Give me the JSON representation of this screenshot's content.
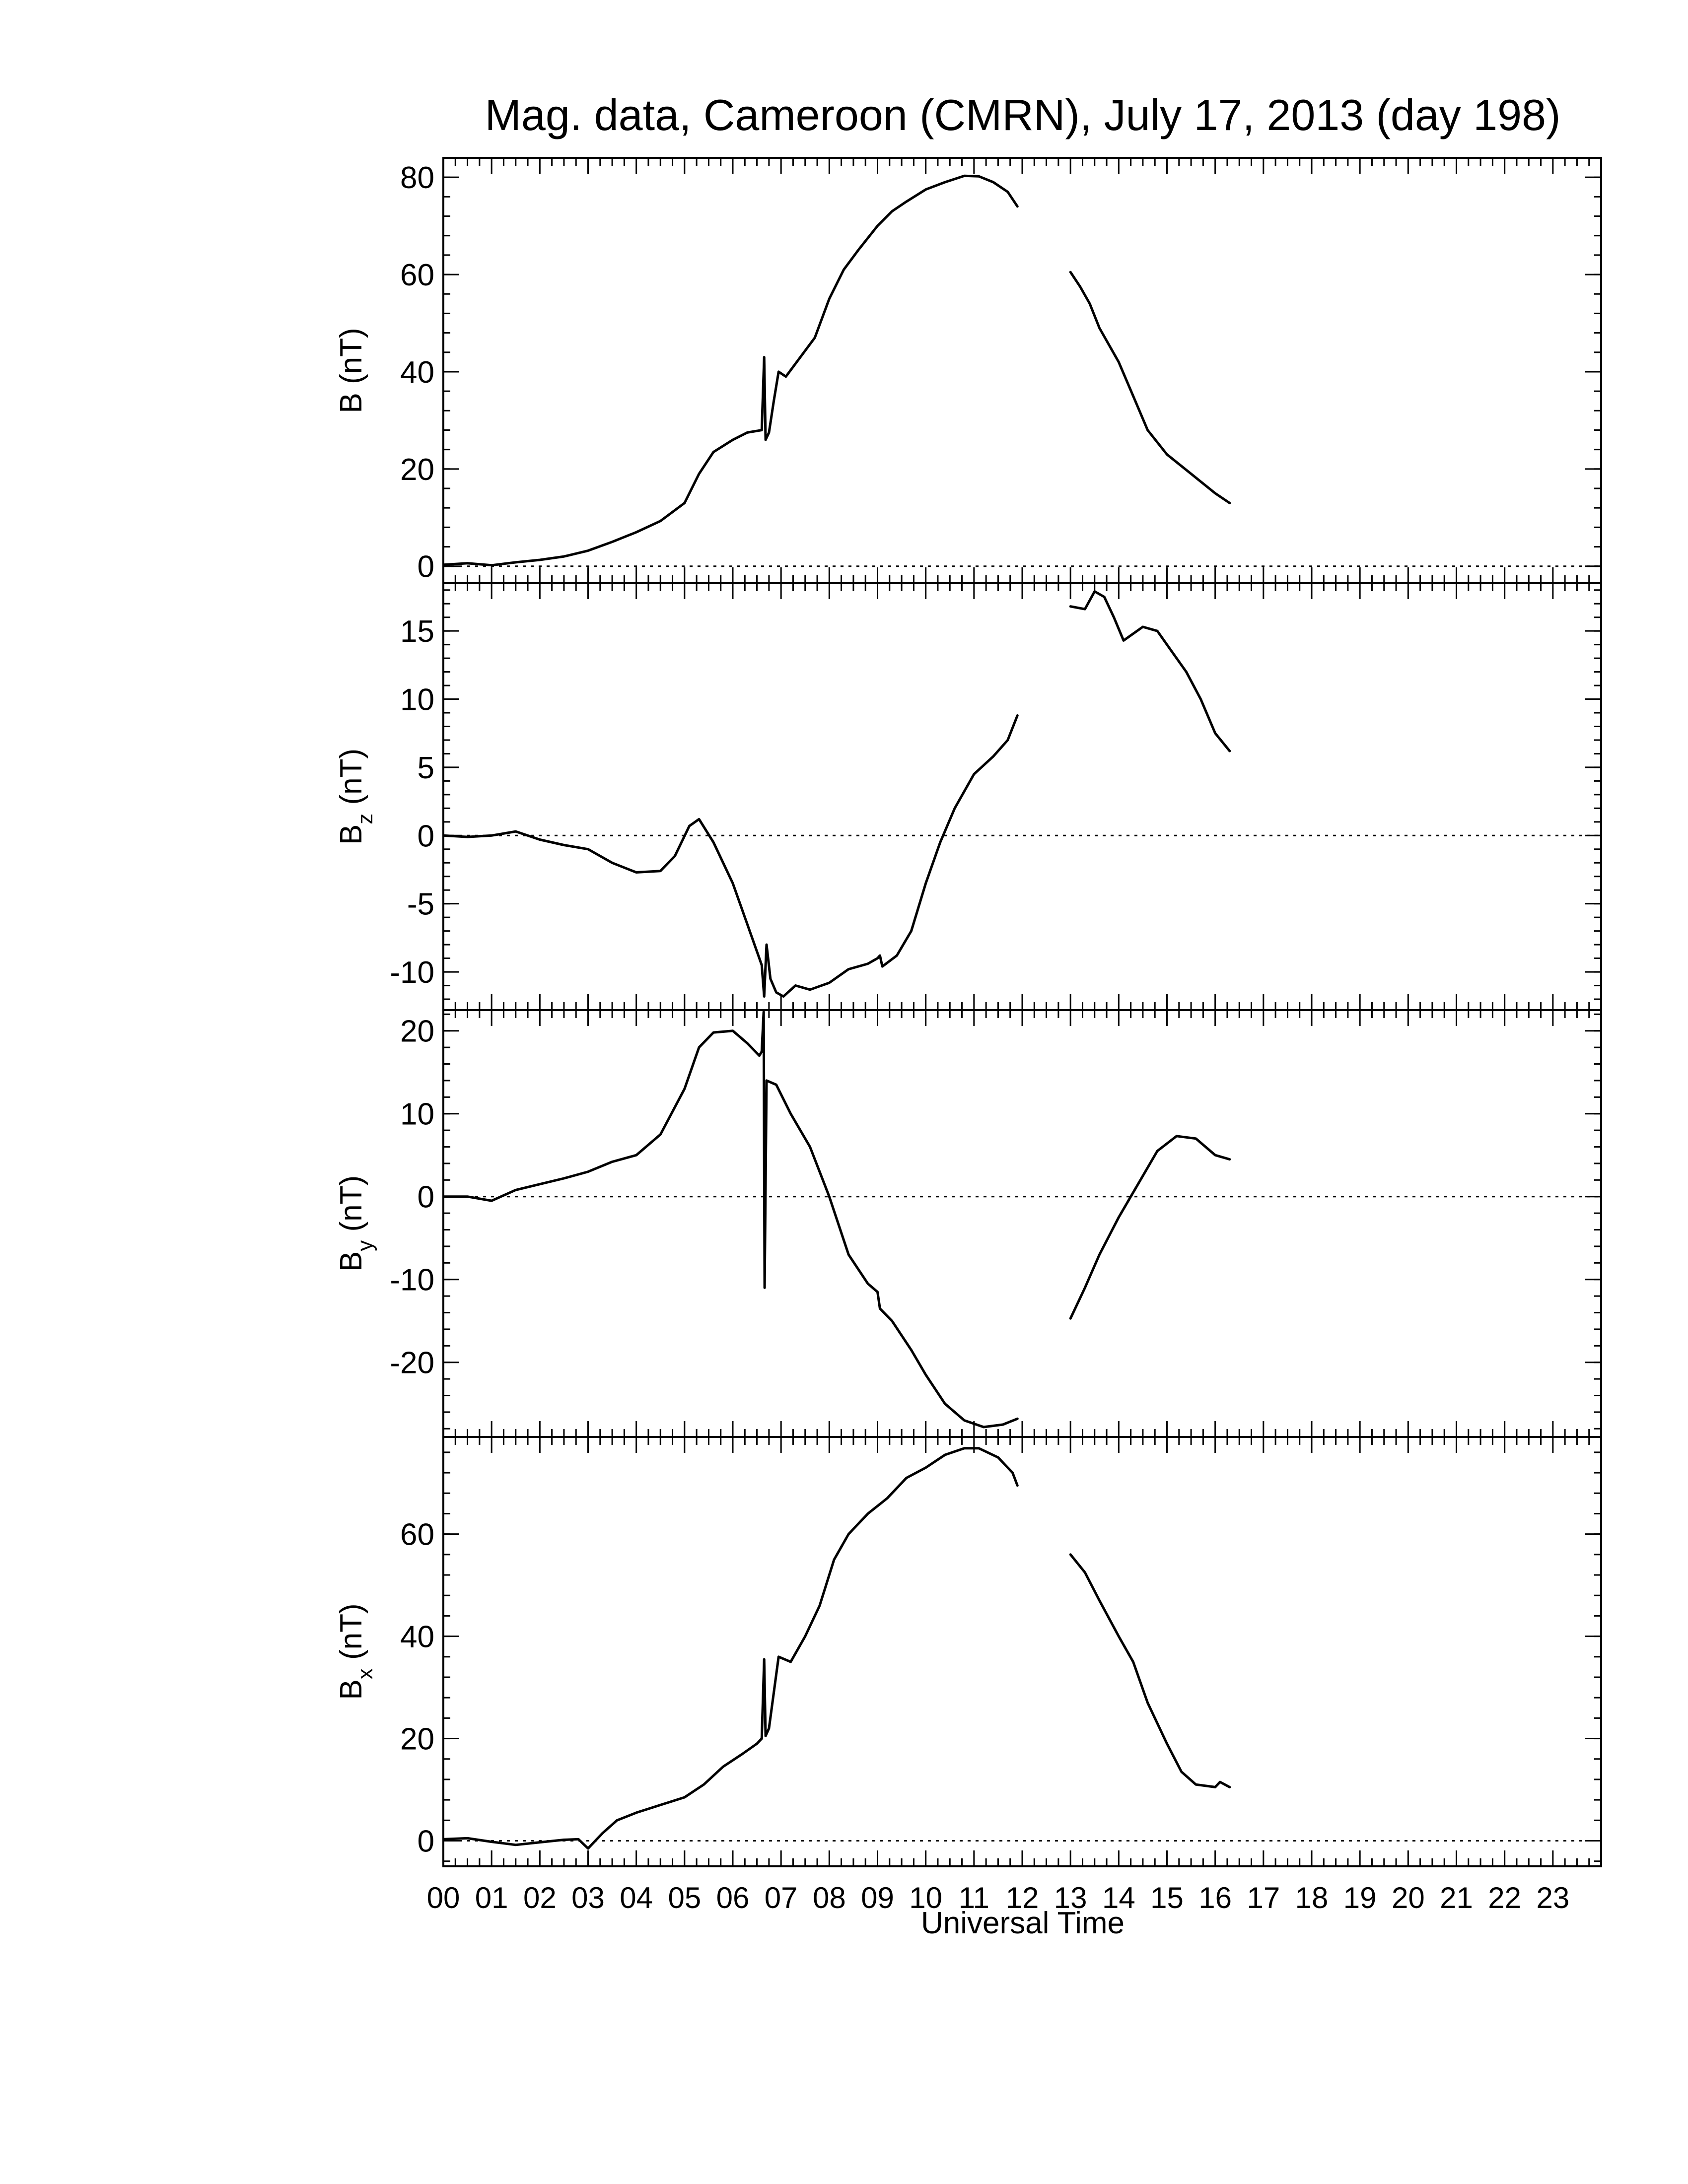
{
  "chart_data": {
    "type": "line",
    "title": "Mag. data, Cameroon (CMRN), July 17, 2013 (day 198)",
    "xlabel": "Universal Time",
    "xlim": [
      0,
      24
    ],
    "xtick_labels": [
      "00",
      "01",
      "02",
      "03",
      "04",
      "05",
      "06",
      "07",
      "08",
      "09",
      "10",
      "11",
      "12",
      "13",
      "14",
      "15",
      "16",
      "17",
      "18",
      "19",
      "20",
      "21",
      "22",
      "23"
    ],
    "grid": false,
    "panels": [
      {
        "id": "B",
        "ylabel_base": "B",
        "ylabel_sub": "",
        "ylabel_unit": " (nT)",
        "ylim": [
          -3.5,
          84
        ],
        "yticks": [
          0,
          20,
          40,
          60,
          80
        ],
        "ytick_labels": [
          "0",
          "20",
          "40",
          "60",
          "80"
        ],
        "zero_line": true,
        "segments": [
          [
            [
              0,
              0.3
            ],
            [
              0.5,
              0.6
            ],
            [
              1,
              0.2
            ],
            [
              1.5,
              0.8
            ],
            [
              2,
              1.3
            ],
            [
              2.5,
              2.0
            ],
            [
              3,
              3.2
            ],
            [
              3.5,
              5.0
            ],
            [
              4,
              7.0
            ],
            [
              4.5,
              9.3
            ],
            [
              5,
              13.0
            ],
            [
              5.3,
              19.0
            ],
            [
              5.6,
              23.5
            ],
            [
              6,
              26.0
            ],
            [
              6.3,
              27.5
            ],
            [
              6.6,
              28.0
            ],
            [
              6.65,
              43.0
            ],
            [
              6.68,
              26.0
            ],
            [
              6.75,
              27.5
            ],
            [
              6.85,
              34.0
            ],
            [
              6.95,
              40.0
            ],
            [
              7.1,
              39.0
            ],
            [
              7.4,
              43.0
            ],
            [
              7.7,
              47.0
            ],
            [
              8,
              55.0
            ],
            [
              8.3,
              61.0
            ],
            [
              8.6,
              65.0
            ],
            [
              9,
              70.0
            ],
            [
              9.3,
              73.0
            ],
            [
              9.6,
              75.0
            ],
            [
              10,
              77.5
            ],
            [
              10.4,
              79.0
            ],
            [
              10.8,
              80.3
            ],
            [
              11.1,
              80.2
            ],
            [
              11.4,
              79.0
            ],
            [
              11.7,
              77.0
            ],
            [
              11.9,
              74.0
            ]
          ],
          [
            [
              13,
              60.5
            ],
            [
              13.2,
              57.5
            ],
            [
              13.4,
              54.0
            ],
            [
              13.6,
              49.0
            ],
            [
              14,
              42.0
            ],
            [
              14.3,
              35.0
            ],
            [
              14.6,
              28.0
            ],
            [
              15,
              23.0
            ],
            [
              15.5,
              19.0
            ],
            [
              16,
              15.0
            ],
            [
              16.3,
              13.0
            ]
          ]
        ]
      },
      {
        "id": "Bz",
        "ylabel_base": "B",
        "ylabel_sub": "z",
        "ylabel_unit": " (nT)",
        "ylim": [
          -12.8,
          18.5
        ],
        "yticks": [
          -10,
          -5,
          0,
          5,
          10,
          15
        ],
        "ytick_labels": [
          "-10",
          "-5",
          "0",
          "5",
          "10",
          "15"
        ],
        "zero_line": true,
        "segments": [
          [
            [
              0,
              0.0
            ],
            [
              0.5,
              -0.1
            ],
            [
              1,
              0.0
            ],
            [
              1.5,
              0.3
            ],
            [
              2,
              -0.3
            ],
            [
              2.5,
              -0.7
            ],
            [
              3,
              -1.0
            ],
            [
              3.5,
              -2.0
            ],
            [
              4,
              -2.7
            ],
            [
              4.5,
              -2.6
            ],
            [
              4.8,
              -1.5
            ],
            [
              5.1,
              0.7
            ],
            [
              5.3,
              1.2
            ],
            [
              5.6,
              -0.5
            ],
            [
              6,
              -3.5
            ],
            [
              6.3,
              -6.5
            ],
            [
              6.6,
              -9.5
            ],
            [
              6.65,
              -11.8
            ],
            [
              6.7,
              -8.0
            ],
            [
              6.78,
              -10.5
            ],
            [
              6.9,
              -11.5
            ],
            [
              7.05,
              -11.8
            ],
            [
              7.3,
              -11.0
            ],
            [
              7.6,
              -11.3
            ],
            [
              8,
              -10.8
            ],
            [
              8.4,
              -9.8
            ],
            [
              8.8,
              -9.4
            ],
            [
              9.0,
              -9.0
            ],
            [
              9.05,
              -8.8
            ],
            [
              9.1,
              -9.6
            ],
            [
              9.4,
              -8.8
            ],
            [
              9.7,
              -7.0
            ],
            [
              10,
              -3.5
            ],
            [
              10.3,
              -0.5
            ],
            [
              10.6,
              2.0
            ],
            [
              11,
              4.5
            ],
            [
              11.4,
              5.8
            ],
            [
              11.7,
              7.0
            ],
            [
              11.9,
              8.8
            ]
          ],
          [
            [
              13,
              16.8
            ],
            [
              13.3,
              16.6
            ],
            [
              13.5,
              17.9
            ],
            [
              13.7,
              17.5
            ],
            [
              13.9,
              16.0
            ],
            [
              14.1,
              14.3
            ],
            [
              14.3,
              14.8
            ],
            [
              14.5,
              15.3
            ],
            [
              14.8,
              15.0
            ],
            [
              15.1,
              13.5
            ],
            [
              15.4,
              12.0
            ],
            [
              15.7,
              10.0
            ],
            [
              16,
              7.5
            ],
            [
              16.3,
              6.2
            ]
          ]
        ]
      },
      {
        "id": "By",
        "ylabel_base": "B",
        "ylabel_sub": "y",
        "ylabel_unit": " (nT)",
        "ylim": [
          -29,
          22.5
        ],
        "yticks": [
          -20,
          -10,
          0,
          10,
          20
        ],
        "ytick_labels": [
          "-20",
          "-10",
          "0",
          "10",
          "20"
        ],
        "zero_line": true,
        "segments": [
          [
            [
              0,
              0.0
            ],
            [
              0.5,
              0.0
            ],
            [
              1,
              -0.5
            ],
            [
              1.5,
              0.8
            ],
            [
              2,
              1.5
            ],
            [
              2.5,
              2.2
            ],
            [
              3,
              3.0
            ],
            [
              3.5,
              4.2
            ],
            [
              4,
              5.0
            ],
            [
              4.5,
              7.5
            ],
            [
              5,
              13.0
            ],
            [
              5.3,
              18.0
            ],
            [
              5.6,
              19.8
            ],
            [
              6,
              20.0
            ],
            [
              6.3,
              18.5
            ],
            [
              6.55,
              17.0
            ],
            [
              6.6,
              17.5
            ],
            [
              6.64,
              22.3
            ],
            [
              6.66,
              -11.0
            ],
            [
              6.7,
              14.0
            ],
            [
              6.9,
              13.5
            ],
            [
              7.2,
              10.0
            ],
            [
              7.6,
              6.0
            ],
            [
              8,
              0.0
            ],
            [
              8.4,
              -7.0
            ],
            [
              8.8,
              -10.5
            ],
            [
              9.0,
              -11.5
            ],
            [
              9.05,
              -13.5
            ],
            [
              9.3,
              -15.0
            ],
            [
              9.7,
              -18.5
            ],
            [
              10,
              -21.5
            ],
            [
              10.4,
              -25.0
            ],
            [
              10.8,
              -27.0
            ],
            [
              11.2,
              -27.8
            ],
            [
              11.6,
              -27.5
            ],
            [
              11.9,
              -26.8
            ]
          ],
          [
            [
              13,
              -14.7
            ],
            [
              13.3,
              -11.0
            ],
            [
              13.6,
              -7.0
            ],
            [
              14,
              -2.5
            ],
            [
              14.4,
              1.5
            ],
            [
              14.8,
              5.5
            ],
            [
              15.2,
              7.3
            ],
            [
              15.6,
              7.0
            ],
            [
              16,
              5.0
            ],
            [
              16.3,
              4.5
            ]
          ]
        ]
      },
      {
        "id": "Bx",
        "ylabel_base": "B",
        "ylabel_sub": "x",
        "ylabel_unit": " (nT)",
        "ylim": [
          -5,
          79
        ],
        "yticks": [
          0,
          20,
          40,
          60
        ],
        "ytick_labels": [
          "0",
          "20",
          "40",
          "60"
        ],
        "zero_line": true,
        "segments": [
          [
            [
              0,
              0.3
            ],
            [
              0.5,
              0.5
            ],
            [
              1,
              -0.2
            ],
            [
              1.5,
              -0.8
            ],
            [
              2,
              -0.3
            ],
            [
              2.5,
              0.2
            ],
            [
              2.8,
              0.3
            ],
            [
              3.0,
              -1.5
            ],
            [
              3.3,
              1.5
            ],
            [
              3.6,
              4.0
            ],
            [
              4,
              5.5
            ],
            [
              4.5,
              7.0
            ],
            [
              5,
              8.5
            ],
            [
              5.4,
              11.0
            ],
            [
              5.8,
              14.5
            ],
            [
              6.2,
              17.0
            ],
            [
              6.5,
              19.0
            ],
            [
              6.6,
              20.0
            ],
            [
              6.65,
              35.5
            ],
            [
              6.68,
              20.5
            ],
            [
              6.75,
              22.0
            ],
            [
              6.85,
              29.0
            ],
            [
              6.95,
              36.0
            ],
            [
              7.2,
              35.0
            ],
            [
              7.5,
              40.0
            ],
            [
              7.8,
              46.0
            ],
            [
              8.1,
              55.0
            ],
            [
              8.4,
              60.0
            ],
            [
              8.8,
              64.0
            ],
            [
              9.2,
              67.0
            ],
            [
              9.6,
              71.0
            ],
            [
              10,
              73.0
            ],
            [
              10.4,
              75.5
            ],
            [
              10.8,
              76.8
            ],
            [
              11.1,
              76.8
            ],
            [
              11.5,
              75.0
            ],
            [
              11.8,
              72.0
            ],
            [
              11.9,
              69.5
            ]
          ],
          [
            [
              13,
              56.0
            ],
            [
              13.3,
              52.5
            ],
            [
              13.6,
              47.0
            ],
            [
              14,
              40.0
            ],
            [
              14.3,
              35.0
            ],
            [
              14.6,
              27.0
            ],
            [
              15,
              19.0
            ],
            [
              15.3,
              13.5
            ],
            [
              15.6,
              11.0
            ],
            [
              16,
              10.5
            ],
            [
              16.1,
              11.5
            ],
            [
              16.3,
              10.5
            ]
          ]
        ]
      }
    ]
  }
}
